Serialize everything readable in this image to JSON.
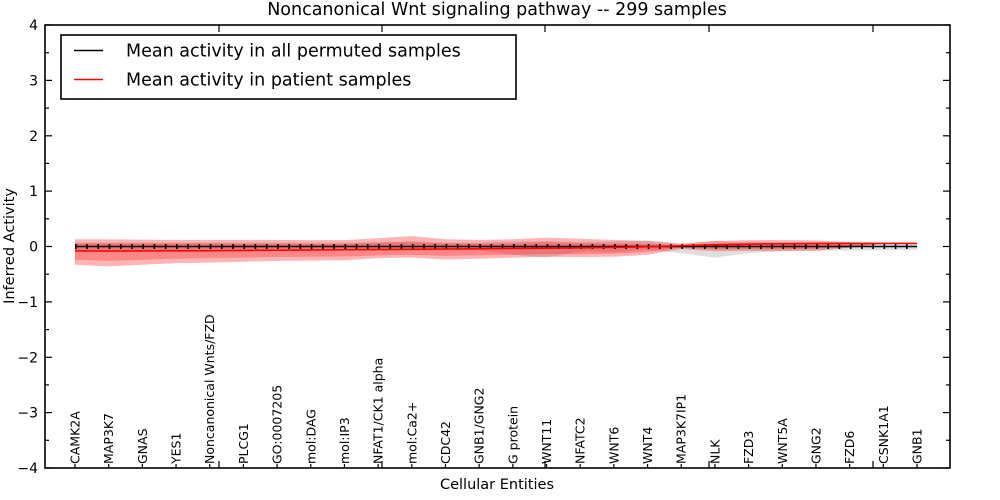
{
  "chart_data": {
    "type": "line",
    "title": "Noncanonical Wnt signaling pathway -- 299 samples",
    "xlabel": "Cellular Entities",
    "ylabel": "Inferred Activity",
    "ylim": [
      -4,
      4
    ],
    "yticks": [
      4,
      3,
      2,
      1,
      0,
      -1,
      -2,
      -3,
      -4
    ],
    "yticklabels": [
      "4",
      "3",
      "2",
      "1",
      "0",
      "−1",
      "−2",
      "−3",
      "−4"
    ],
    "ytick_minor_step": 0.5,
    "grid": false,
    "legend_position": "upper left",
    "categories": [
      "CAMK2A",
      "MAP3K7",
      "GNAS",
      "YES1",
      "Noncanonical Wnts/FZD",
      "PLCG1",
      "GO:0007205",
      "mol:DAG",
      "mol:IP3",
      "NFAT1/CK1 alpha",
      "mol:Ca2+",
      "CDC42",
      "GNB1/GNG2",
      "G protein",
      "WNT11",
      "NFATC2",
      "WNT6",
      "WNT4",
      "MAP3K7IP1",
      "NLK",
      "FZD3",
      "WNT5A",
      "GNG2",
      "FZD6",
      "CSNK1A1",
      "GNB1"
    ],
    "series": [
      {
        "name": "Mean activity in all permuted samples",
        "color": "#000000",
        "marker": "tick",
        "values": [
          0,
          0,
          0,
          0,
          0,
          0,
          0,
          0,
          0,
          0,
          0,
          0,
          0,
          0,
          0,
          0,
          0,
          0,
          0,
          0,
          0,
          0,
          0,
          0,
          0,
          0
        ]
      },
      {
        "name": "Mean activity in patient samples",
        "color": "#ff0000",
        "marker": "none",
        "values": [
          -0.08,
          -0.082,
          -0.08,
          -0.078,
          -0.075,
          -0.072,
          -0.068,
          -0.064,
          -0.06,
          -0.055,
          -0.05,
          -0.046,
          -0.042,
          -0.037,
          -0.032,
          -0.026,
          -0.016,
          -0.004,
          0.012,
          0.03,
          0.042,
          0.05,
          0.055,
          0.056,
          0.056,
          0.056
        ]
      }
    ],
    "bands": [
      {
        "name": "permuted-samples-band",
        "color": "#000000",
        "opacity": 0.13,
        "upper": [
          0.07,
          0.07,
          0.07,
          0.07,
          0.07,
          0.07,
          0.07,
          0.07,
          0.07,
          0.075,
          0.08,
          0.07,
          0.07,
          0.09,
          0.1,
          0.08,
          0.09,
          0.11,
          0.06,
          0.1,
          0.08,
          0.07,
          0.075,
          0.075,
          0.07,
          0.065
        ],
        "lower": [
          -0.07,
          -0.07,
          -0.07,
          -0.07,
          -0.07,
          -0.07,
          -0.07,
          -0.07,
          -0.07,
          -0.075,
          -0.08,
          -0.07,
          -0.07,
          -0.15,
          -0.2,
          -0.09,
          -0.1,
          -0.06,
          -0.12,
          -0.2,
          -0.12,
          -0.08,
          -0.075,
          -0.07,
          -0.065,
          -0.06
        ]
      },
      {
        "name": "patient-samples-band-outer",
        "color": "#ff0000",
        "opacity": 0.29,
        "upper": [
          0.13,
          0.13,
          0.125,
          0.12,
          0.12,
          0.12,
          0.12,
          0.115,
          0.115,
          0.15,
          0.19,
          0.13,
          0.12,
          0.13,
          0.16,
          0.14,
          0.12,
          0.1,
          0.045,
          0.1,
          0.115,
          0.115,
          0.11,
          0.08,
          0.058,
          0.058
        ],
        "lower": [
          -0.33,
          -0.36,
          -0.33,
          -0.3,
          -0.29,
          -0.275,
          -0.26,
          -0.255,
          -0.25,
          -0.21,
          -0.2,
          -0.235,
          -0.22,
          -0.2,
          -0.185,
          -0.19,
          -0.185,
          -0.15,
          -0.045,
          -0.085,
          -0.08,
          -0.085,
          -0.075,
          -0.02,
          0.052,
          0.052
        ]
      },
      {
        "name": "patient-samples-band-inner",
        "color": "#ff0000",
        "opacity": 0.25,
        "upper": [
          0.06,
          0.06,
          0.06,
          0.06,
          0.058,
          0.055,
          0.055,
          0.05,
          0.05,
          0.07,
          0.09,
          0.06,
          0.055,
          0.06,
          0.08,
          0.06,
          0.055,
          0.05,
          0.02,
          0.06,
          0.07,
          0.07,
          0.065,
          0.06,
          0.057,
          0.057
        ],
        "lower": [
          -0.24,
          -0.26,
          -0.24,
          -0.22,
          -0.21,
          -0.2,
          -0.19,
          -0.185,
          -0.18,
          -0.16,
          -0.15,
          -0.17,
          -0.16,
          -0.15,
          -0.14,
          -0.14,
          -0.13,
          -0.1,
          -0.02,
          -0.05,
          -0.045,
          -0.05,
          -0.04,
          -0.01,
          0.05,
          0.05
        ]
      }
    ]
  }
}
